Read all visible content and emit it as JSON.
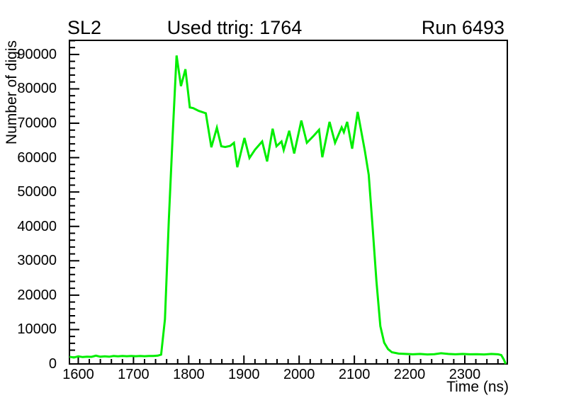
{
  "header": {
    "left_label": "SL2",
    "center_label": "Used ttrig: 1764",
    "right_label": "Run 6493"
  },
  "chart_data": {
    "type": "line",
    "title": "Used ttrig: 1764",
    "xlabel": "Time (ns)",
    "ylabel": "Number of digis",
    "xlim": [
      1584,
      2377
    ],
    "ylim": [
      0,
      94100
    ],
    "x_major_ticks": [
      1600,
      1700,
      1800,
      1900,
      2000,
      2100,
      2200,
      2300
    ],
    "x_minor_step": 20,
    "y_major_ticks": [
      0,
      10000,
      20000,
      30000,
      40000,
      50000,
      60000,
      70000,
      80000,
      90000
    ],
    "y_minor_step": 2000,
    "grid": false,
    "legend": "none",
    "line_color": "#00ee00",
    "frame_color": "#000000",
    "series": [
      {
        "name": "number-of-digis-vs-time",
        "points": [
          [
            1584,
            2100
          ],
          [
            1592,
            1850
          ],
          [
            1600,
            2200
          ],
          [
            1608,
            2000
          ],
          [
            1616,
            2100
          ],
          [
            1624,
            2050
          ],
          [
            1632,
            2400
          ],
          [
            1640,
            2100
          ],
          [
            1648,
            2200
          ],
          [
            1656,
            2100
          ],
          [
            1664,
            2300
          ],
          [
            1672,
            2200
          ],
          [
            1680,
            2300
          ],
          [
            1688,
            2250
          ],
          [
            1696,
            2300
          ],
          [
            1704,
            2250
          ],
          [
            1712,
            2300
          ],
          [
            1720,
            2250
          ],
          [
            1728,
            2300
          ],
          [
            1736,
            2300
          ],
          [
            1744,
            2400
          ],
          [
            1750,
            2700
          ],
          [
            1757,
            13000
          ],
          [
            1764,
            42000
          ],
          [
            1771,
            66500
          ],
          [
            1778,
            89700
          ],
          [
            1786,
            80800
          ],
          [
            1794,
            85700
          ],
          [
            1802,
            74600
          ],
          [
            1808,
            74400
          ],
          [
            1818,
            73600
          ],
          [
            1831,
            72900
          ],
          [
            1841,
            63000
          ],
          [
            1851,
            68700
          ],
          [
            1859,
            63300
          ],
          [
            1866,
            63100
          ],
          [
            1875,
            63400
          ],
          [
            1882,
            64300
          ],
          [
            1888,
            57200
          ],
          [
            1901,
            65700
          ],
          [
            1910,
            59900
          ],
          [
            1920,
            62300
          ],
          [
            1933,
            64700
          ],
          [
            1942,
            58900
          ],
          [
            1952,
            68400
          ],
          [
            1959,
            63300
          ],
          [
            1968,
            64700
          ],
          [
            1972,
            62200
          ],
          [
            1982,
            67800
          ],
          [
            1991,
            61200
          ],
          [
            2004,
            70800
          ],
          [
            2014,
            64300
          ],
          [
            2026,
            66300
          ],
          [
            2036,
            68100
          ],
          [
            2042,
            60100
          ],
          [
            2055,
            70400
          ],
          [
            2065,
            64300
          ],
          [
            2077,
            68800
          ],
          [
            2081,
            67400
          ],
          [
            2087,
            70400
          ],
          [
            2096,
            62600
          ],
          [
            2106,
            73300
          ],
          [
            2119,
            62000
          ],
          [
            2126,
            55000
          ],
          [
            2133,
            40000
          ],
          [
            2140,
            24000
          ],
          [
            2147,
            11000
          ],
          [
            2154,
            6200
          ],
          [
            2161,
            4300
          ],
          [
            2168,
            3400
          ],
          [
            2180,
            3000
          ],
          [
            2193,
            2900
          ],
          [
            2206,
            2800
          ],
          [
            2219,
            2900
          ],
          [
            2232,
            2750
          ],
          [
            2245,
            2850
          ],
          [
            2257,
            3100
          ],
          [
            2270,
            2900
          ],
          [
            2283,
            2800
          ],
          [
            2296,
            2900
          ],
          [
            2309,
            2800
          ],
          [
            2322,
            2850
          ],
          [
            2335,
            2750
          ],
          [
            2348,
            2900
          ],
          [
            2360,
            2800
          ],
          [
            2366,
            2600
          ],
          [
            2371,
            1200
          ],
          [
            2374,
            0
          ]
        ]
      }
    ]
  }
}
